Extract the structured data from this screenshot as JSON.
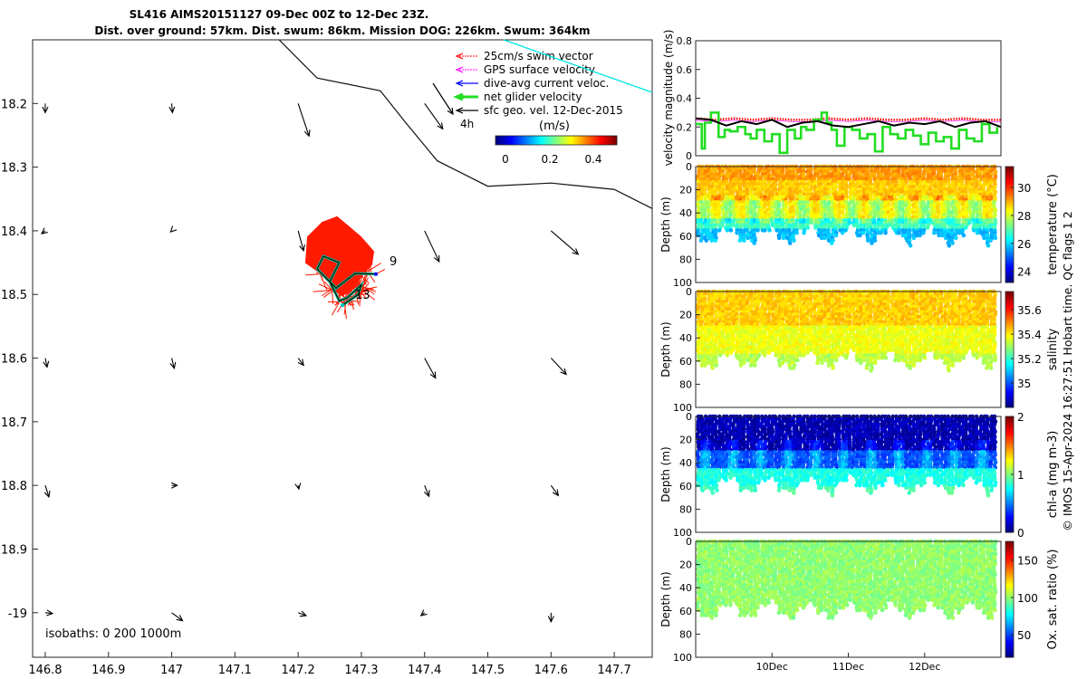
{
  "title_line1": "SL416 AIMS20151127 09-Dec 00Z to 12-Dec 23Z.",
  "title_line2": "Dist. over ground: 57km. Dist. swum: 86km. Mission DOG: 226km. Swum: 364km",
  "colors": {
    "swim": "#ff0000",
    "gps": "#ff00ff",
    "dive_avg": "#0000ff",
    "net": "#22dd22",
    "geo": "#000000",
    "track_fill": "#ff1a00",
    "ref_line": "#00e5e5",
    "ox_fill": "#1fb84a"
  },
  "chart_data": [
    {
      "type": "scatter",
      "name": "track-map",
      "xlabel": "",
      "ylabel": "",
      "xlim": [
        146.78,
        147.76
      ],
      "ylim": [
        -19.07,
        -18.1
      ],
      "xticks": [
        146.8,
        146.9,
        147,
        147.1,
        147.2,
        147.3,
        147.4,
        147.5,
        147.6,
        147.7
      ],
      "xtick_labels": [
        "146.8",
        "146.9",
        "147",
        "147.1",
        "147.2",
        "147.3",
        "147.4",
        "147.5",
        "147.6",
        "147.7"
      ],
      "yticks": [
        -18.2,
        -18.3,
        -18.4,
        -18.5,
        -18.6,
        -18.7,
        -18.8,
        -18.9,
        -19.0
      ],
      "ytick_labels": [
        "18.2",
        "18.3",
        "18.4",
        "18.5",
        "18.6",
        "18.7",
        "18.8",
        "18.9",
        "-19"
      ],
      "legend": {
        "items": [
          {
            "label": "25cm/s swim vector",
            "color": "#ff0000"
          },
          {
            "label": "GPS surface velocity",
            "color": "#ff00ff"
          },
          {
            "label": "dive-avg current veloc.",
            "color": "#0000ff"
          },
          {
            "label": "net glider velocity",
            "color": "#22dd22"
          },
          {
            "label": "sfc geo. vel. 12-Dec-2015",
            "color": "#000000"
          }
        ],
        "vector_label": "4h",
        "colorbar_title": "(m/s)",
        "colorbar_ticks": [
          "0",
          "0.2",
          "0.4"
        ]
      },
      "isobaths_label": "isobaths: 0   200   1000m",
      "track_labels": [
        "9",
        "13"
      ],
      "isobath_line": [
        [
          147.15,
          -18.08
        ],
        [
          147.23,
          -18.16
        ],
        [
          147.33,
          -18.18
        ],
        [
          147.37,
          -18.23
        ],
        [
          147.42,
          -18.29
        ],
        [
          147.5,
          -18.33
        ],
        [
          147.6,
          -18.325
        ],
        [
          147.7,
          -18.335
        ],
        [
          147.76,
          -18.365
        ]
      ],
      "cyan_line": [
        [
          147.45,
          -18.09
        ],
        [
          147.76,
          -18.17
        ]
      ],
      "track": [
        [
          147.323,
          -18.468
        ],
        [
          147.29,
          -18.467
        ],
        [
          147.26,
          -18.49
        ],
        [
          147.23,
          -18.46
        ],
        [
          147.24,
          -18.44
        ],
        [
          147.265,
          -18.45
        ],
        [
          147.25,
          -18.48
        ],
        [
          147.265,
          -18.51
        ],
        [
          147.278,
          -18.505
        ],
        [
          147.3,
          -18.485
        ],
        [
          147.295,
          -18.5
        ],
        [
          147.27,
          -18.517
        ]
      ],
      "geo_vectors": [
        {
          "lon": 146.8,
          "lat": -18.2,
          "u": 0.0,
          "v": -0.25
        },
        {
          "lon": 147.0,
          "lat": -18.2,
          "u": 0.02,
          "v": -0.25
        },
        {
          "lon": 147.2,
          "lat": -18.2,
          "u": 0.3,
          "v": -0.9
        },
        {
          "lon": 147.4,
          "lat": -18.2,
          "u": 0.5,
          "v": -0.7
        },
        {
          "lon": 146.8,
          "lat": -18.4,
          "u": -0.1,
          "v": -0.08
        },
        {
          "lon": 147.0,
          "lat": -18.4,
          "u": -0.03,
          "v": -0.03
        },
        {
          "lon": 147.2,
          "lat": -18.4,
          "u": 0.15,
          "v": -0.55
        },
        {
          "lon": 147.4,
          "lat": -18.4,
          "u": 0.4,
          "v": -0.85
        },
        {
          "lon": 147.6,
          "lat": -18.4,
          "u": 0.75,
          "v": -0.65
        },
        {
          "lon": 146.8,
          "lat": -18.6,
          "u": 0.05,
          "v": -0.25
        },
        {
          "lon": 147.0,
          "lat": -18.6,
          "u": 0.07,
          "v": -0.28
        },
        {
          "lon": 147.2,
          "lat": -18.6,
          "u": 0.15,
          "v": -0.2
        },
        {
          "lon": 147.4,
          "lat": -18.6,
          "u": 0.3,
          "v": -0.55
        },
        {
          "lon": 147.6,
          "lat": -18.6,
          "u": 0.42,
          "v": -0.45
        },
        {
          "lon": 146.8,
          "lat": -18.8,
          "u": 0.1,
          "v": -0.32
        },
        {
          "lon": 147.0,
          "lat": -18.8,
          "u": 0.15,
          "v": 0.0
        },
        {
          "lon": 147.2,
          "lat": -18.8,
          "u": 0.02,
          "v": -0.1
        },
        {
          "lon": 147.4,
          "lat": -18.8,
          "u": 0.12,
          "v": -0.3
        },
        {
          "lon": 147.6,
          "lat": -18.8,
          "u": 0.2,
          "v": -0.28
        },
        {
          "lon": 146.8,
          "lat": -19.0,
          "u": 0.2,
          "v": -0.02
        },
        {
          "lon": 147.0,
          "lat": -19.0,
          "u": 0.3,
          "v": -0.22
        },
        {
          "lon": 147.2,
          "lat": -19.0,
          "u": 0.22,
          "v": -0.08
        },
        {
          "lon": 147.4,
          "lat": -19.0,
          "u": -0.1,
          "v": -0.08
        },
        {
          "lon": 147.6,
          "lat": -19.0,
          "u": 0.0,
          "v": -0.25
        }
      ]
    },
    {
      "type": "line",
      "name": "velocity-panel",
      "ylabel": "velocity magnitude (m/s)",
      "ylim": [
        0,
        0.8
      ],
      "yticks": [
        0,
        0.2,
        0.4,
        0.6,
        0.8
      ],
      "ytick_labels": [
        "0",
        "0.2",
        "0.4",
        "0.6",
        "0.8"
      ],
      "xlim": [
        9.0,
        13.0
      ],
      "series": [
        {
          "name": "swim",
          "color": "#ff0000",
          "x": [
            9.0,
            9.25,
            9.5,
            9.75,
            10.0,
            10.25,
            10.5,
            10.75,
            11.0,
            11.25,
            11.5,
            11.75,
            12.0,
            12.25,
            12.5,
            12.75,
            13.0
          ],
          "y": [
            0.26,
            0.25,
            0.26,
            0.25,
            0.26,
            0.25,
            0.25,
            0.26,
            0.25,
            0.26,
            0.25,
            0.25,
            0.26,
            0.25,
            0.26,
            0.25,
            0.25
          ]
        },
        {
          "name": "net",
          "color": "#22dd22",
          "x": [
            9.0,
            9.08,
            9.12,
            9.2,
            9.3,
            9.38,
            9.45,
            9.55,
            9.65,
            9.72,
            9.8,
            9.9,
            10.0,
            10.1,
            10.2,
            10.3,
            10.38,
            10.45,
            10.55,
            10.65,
            10.72,
            10.78,
            10.85,
            10.95,
            11.05,
            11.15,
            11.25,
            11.35,
            11.45,
            11.55,
            11.65,
            11.75,
            11.85,
            11.95,
            12.05,
            12.15,
            12.25,
            12.35,
            12.45,
            12.55,
            12.65,
            12.75,
            12.85,
            12.95
          ],
          "y": [
            0.22,
            0.05,
            0.23,
            0.3,
            0.13,
            0.18,
            0.17,
            0.2,
            0.15,
            0.12,
            0.18,
            0.1,
            0.15,
            0.02,
            0.18,
            0.12,
            0.2,
            0.18,
            0.25,
            0.3,
            0.23,
            0.18,
            0.07,
            0.2,
            0.18,
            0.12,
            0.15,
            0.03,
            0.2,
            0.15,
            0.12,
            0.18,
            0.14,
            0.08,
            0.16,
            0.1,
            0.13,
            0.05,
            0.18,
            0.12,
            0.1,
            0.22,
            0.16,
            0.2
          ]
        },
        {
          "name": "dive-avg",
          "color": "#000000",
          "x": [
            9.0,
            9.2,
            9.4,
            9.6,
            9.8,
            10.0,
            10.2,
            10.4,
            10.6,
            10.8,
            11.0,
            11.2,
            11.4,
            11.6,
            11.8,
            12.0,
            12.2,
            12.4,
            12.6,
            12.8,
            13.0
          ],
          "y": [
            0.26,
            0.25,
            0.21,
            0.24,
            0.22,
            0.25,
            0.2,
            0.23,
            0.24,
            0.21,
            0.2,
            0.22,
            0.24,
            0.21,
            0.23,
            0.22,
            0.24,
            0.2,
            0.23,
            0.24,
            0.2
          ]
        }
      ]
    },
    {
      "type": "heatmap",
      "name": "temperature-panel",
      "ylabel": "Depth (m)",
      "cbar_label": "temperature (°C)",
      "clim": [
        23.2,
        31.5
      ],
      "cbar_ticks": [
        24,
        26,
        28,
        30
      ],
      "yticks": [
        0,
        20,
        40,
        60,
        80,
        100
      ],
      "ytick_labels": [
        "0",
        "20",
        "40",
        "60",
        "80",
        "100"
      ],
      "layers": [
        {
          "depth": [
            0,
            12
          ],
          "value": 29.2
        },
        {
          "depth": [
            12,
            30
          ],
          "value": 28.8
        },
        {
          "depth": [
            30,
            45
          ],
          "value": 28.0
        },
        {
          "depth": [
            45,
            55
          ],
          "value": 26.8
        },
        {
          "depth": [
            55,
            65
          ],
          "value": 25.8
        }
      ]
    },
    {
      "type": "heatmap",
      "name": "salinity-panel",
      "ylabel": "Depth (m)",
      "cbar_label": "salinity",
      "clim": [
        34.8,
        35.75
      ],
      "cbar_ticks": [
        35,
        35.2,
        35.4,
        35.6
      ],
      "yticks": [
        0,
        20,
        40,
        60,
        80,
        100
      ],
      "ytick_labels": [
        "0",
        "20",
        "40",
        "60",
        "80",
        "100"
      ],
      "layers": [
        {
          "depth": [
            0,
            30
          ],
          "value": 35.44
        },
        {
          "depth": [
            30,
            55
          ],
          "value": 35.38
        },
        {
          "depth": [
            55,
            66
          ],
          "value": 35.33
        }
      ]
    },
    {
      "type": "heatmap",
      "name": "chla-panel",
      "ylabel": "Depth (m)",
      "cbar_label": "chl-a (mg m-3)",
      "clim": [
        0,
        2
      ],
      "cbar_ticks": [
        0,
        1,
        2
      ],
      "yticks": [
        0,
        20,
        40,
        60,
        80,
        100
      ],
      "ytick_labels": [
        "0",
        "20",
        "40",
        "60",
        "80",
        "100"
      ],
      "layers": [
        {
          "depth": [
            0,
            30
          ],
          "value": 0.1
        },
        {
          "depth": [
            30,
            45
          ],
          "value": 0.4
        },
        {
          "depth": [
            45,
            60
          ],
          "value": 0.8
        },
        {
          "depth": [
            60,
            66
          ],
          "value": 0.9
        }
      ]
    },
    {
      "type": "heatmap",
      "name": "oxygen-panel",
      "ylabel": "Depth (m)",
      "cbar_label": "Ox. sat. ratio (%)",
      "clim": [
        20,
        175
      ],
      "cbar_ticks": [
        50,
        100,
        150
      ],
      "yticks": [
        0,
        20,
        40,
        60,
        80,
        100
      ],
      "ytick_labels": [
        "0",
        "20",
        "40",
        "60",
        "80",
        "100"
      ],
      "xticks": [
        10,
        11,
        12
      ],
      "xtick_labels": [
        "10Dec",
        "11Dec",
        "12Dec"
      ],
      "layers": [
        {
          "depth": [
            0,
            66
          ],
          "value": 100
        }
      ]
    }
  ],
  "side_note": "© IMOS 15-Apr-2024 16:27:51 Hobart time. QC flags 1  2"
}
